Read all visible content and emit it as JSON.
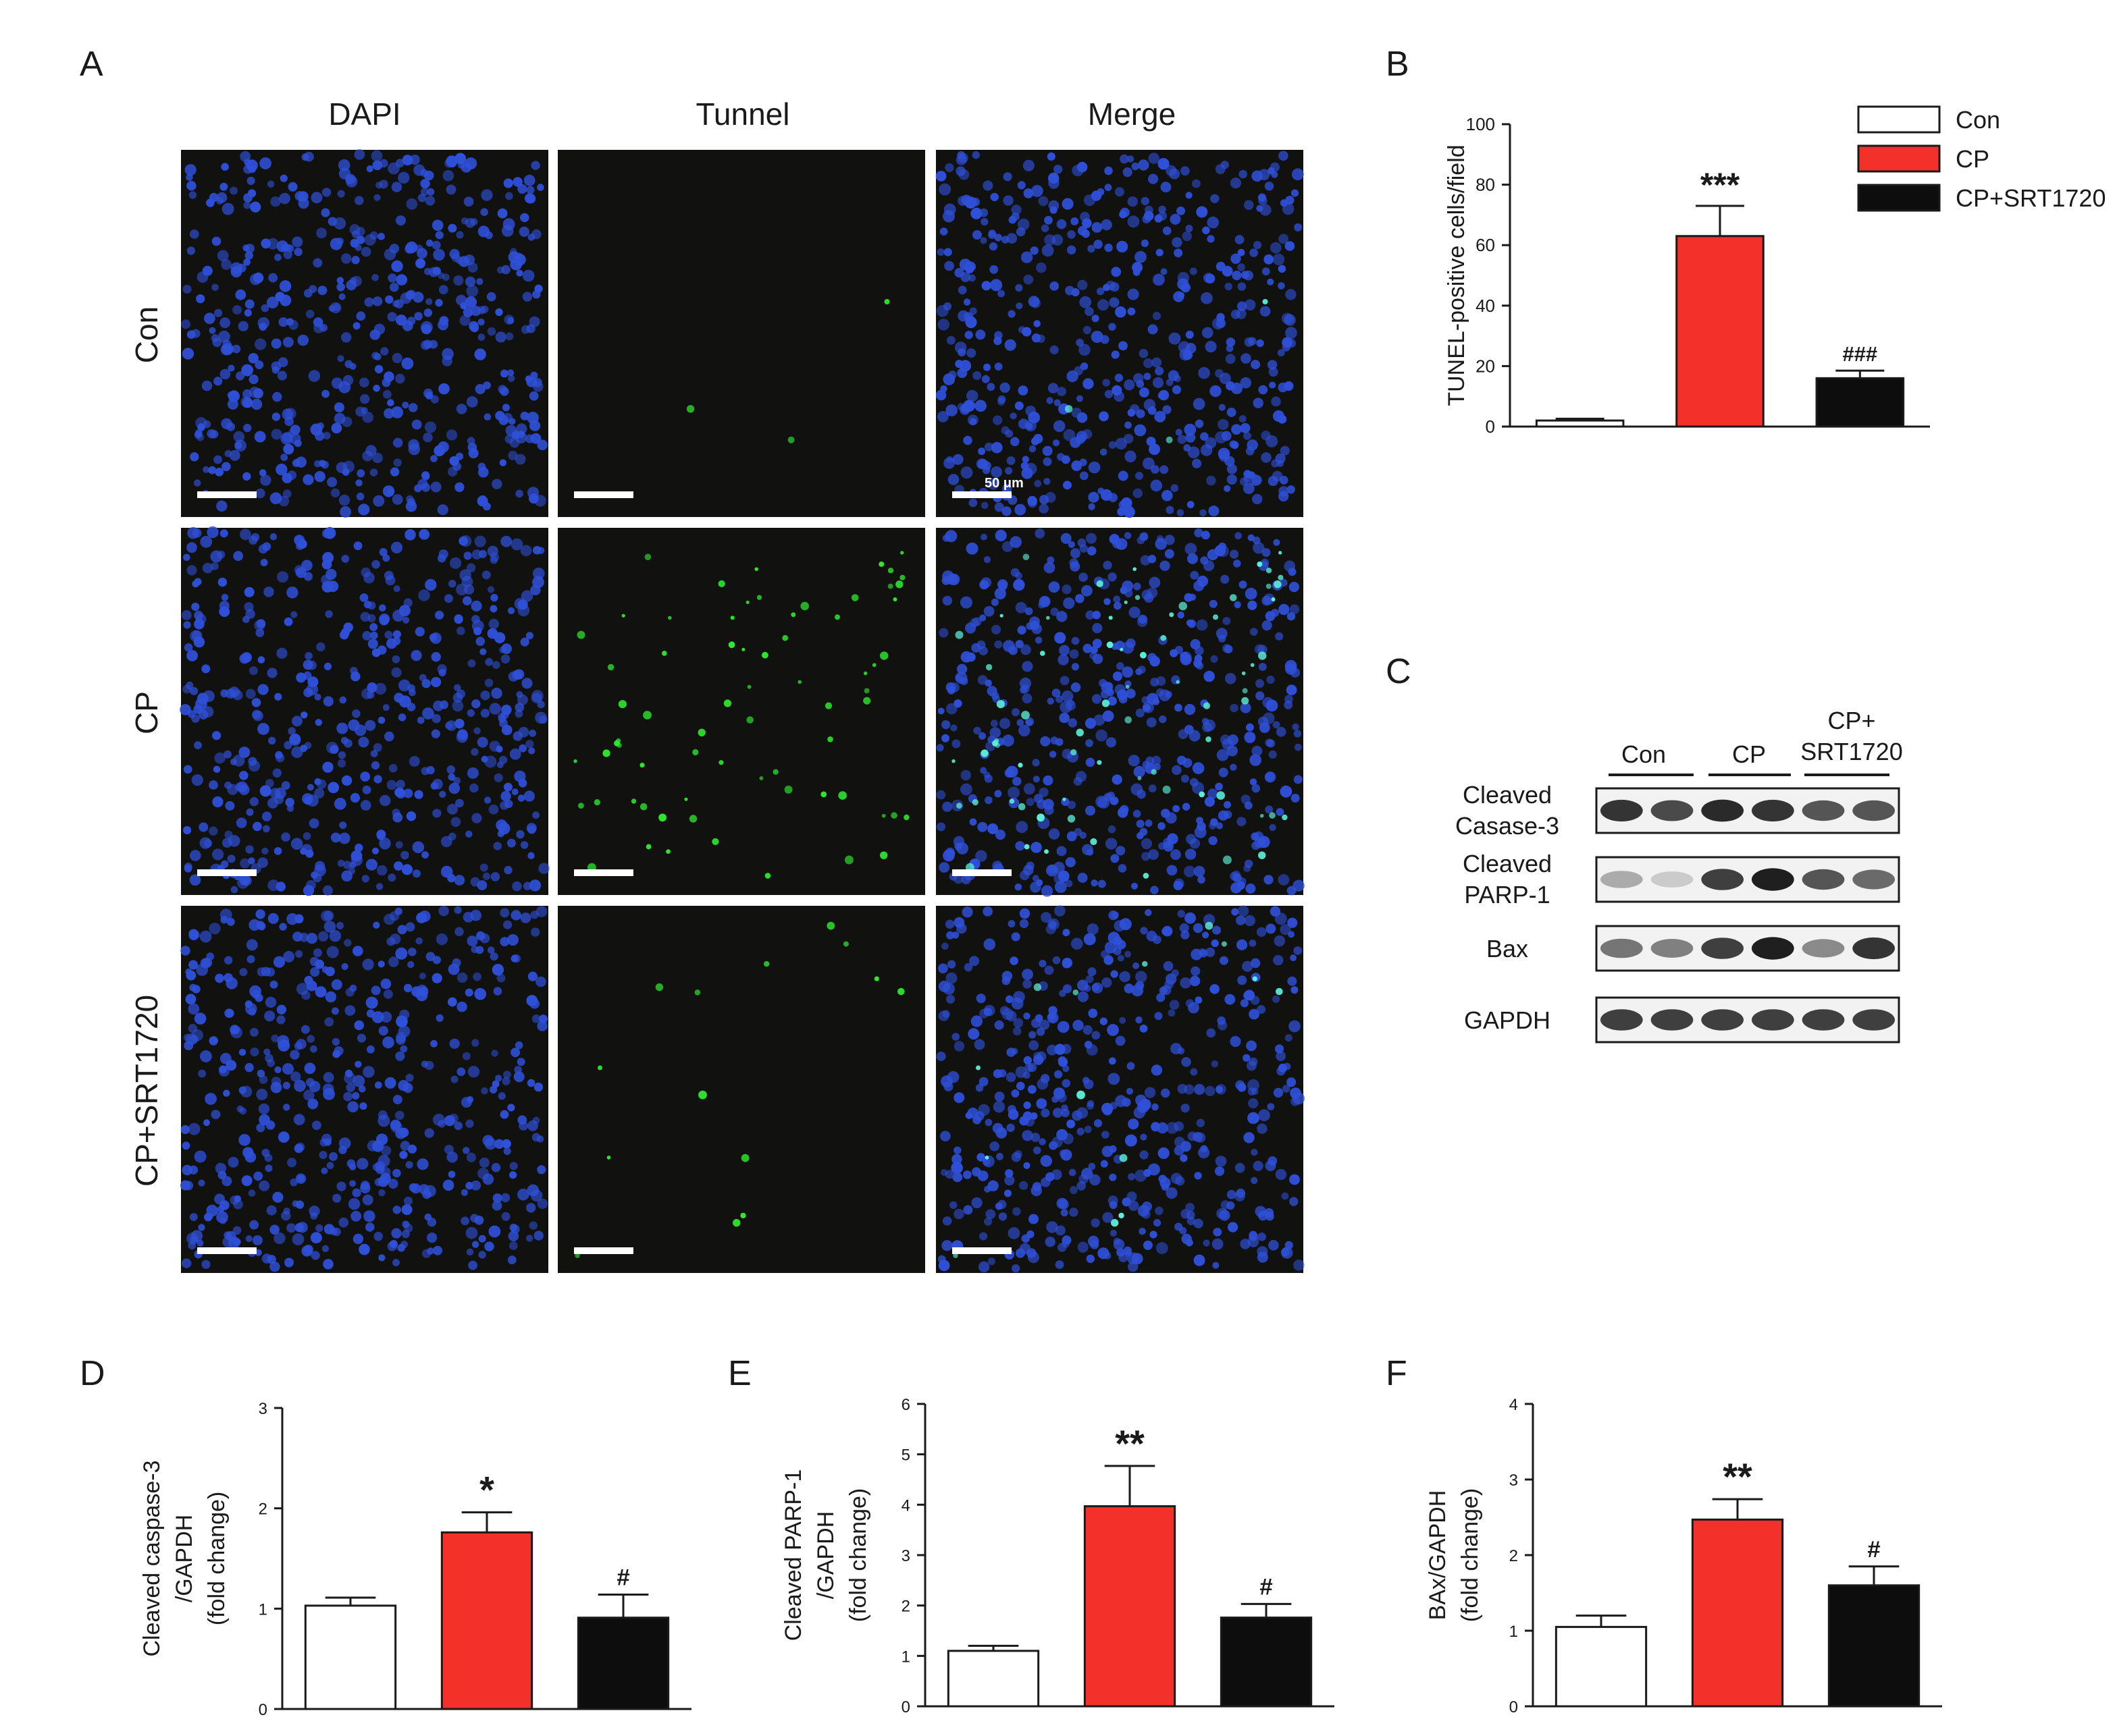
{
  "panel_letters": {
    "A": "A",
    "B": "B",
    "C": "C",
    "D": "D",
    "E": "E",
    "F": "F"
  },
  "micrographs": {
    "columns": [
      "DAPI",
      "Tunnel",
      "Merge"
    ],
    "rows": [
      "Con",
      "CP",
      "CP+SRT1720"
    ],
    "scale_label": "50 μm",
    "colors": {
      "background": "#111210",
      "nuclei": "#2f50d8",
      "tunel": "#2ee82e",
      "scale_bar": "#ffffff"
    }
  },
  "western_blot": {
    "groups": [
      "Con",
      "CP",
      "CP+\nSRT1720"
    ],
    "bands": [
      "Cleaved\nCasase-3",
      "Cleaved\nPARP-1",
      "Bax",
      "GAPDH"
    ],
    "band_intensity": [
      [
        0.85,
        0.75,
        0.9,
        0.85,
        0.7,
        0.7
      ],
      [
        0.3,
        0.15,
        0.8,
        0.95,
        0.7,
        0.6
      ],
      [
        0.55,
        0.5,
        0.8,
        0.95,
        0.45,
        0.85
      ],
      [
        0.8,
        0.8,
        0.8,
        0.8,
        0.8,
        0.8
      ]
    ]
  },
  "chart_data": [
    {
      "panel": "B",
      "type": "bar",
      "categories": [
        "Con",
        "CP",
        "CP+SRT1720"
      ],
      "values": [
        2,
        63,
        16
      ],
      "errors": [
        0.6,
        10,
        2.5
      ],
      "annotations": [
        "",
        "***",
        "###"
      ],
      "ylabel": "TUNEL-positive cells/field",
      "ylim": [
        0,
        100
      ],
      "yticks": [
        0,
        20,
        40,
        60,
        80,
        100
      ],
      "legend": [
        "Con",
        "CP",
        "CP+SRT1720"
      ],
      "legend_position": "top-right",
      "colors": [
        "#ffffff",
        "#f4302a",
        "#0d0d0d"
      ]
    },
    {
      "panel": "D",
      "type": "bar",
      "categories": [
        "Con",
        "CP",
        "CP+SRT1720"
      ],
      "values": [
        1.03,
        1.76,
        0.91
      ],
      "errors": [
        0.08,
        0.2,
        0.23
      ],
      "annotations": [
        "",
        "*",
        "#"
      ],
      "ylabel": [
        "Cleaved caspase-3",
        "/GAPDH",
        "(fold change)"
      ],
      "ylim": [
        0,
        3
      ],
      "yticks": [
        0,
        1,
        2,
        3
      ],
      "colors": [
        "#ffffff",
        "#f4302a",
        "#0d0d0d"
      ]
    },
    {
      "panel": "E",
      "type": "bar",
      "categories": [
        "Con",
        "CP",
        "CP+SRT1720"
      ],
      "values": [
        1.1,
        3.97,
        1.76
      ],
      "errors": [
        0.1,
        0.8,
        0.27
      ],
      "annotations": [
        "",
        "**",
        "#"
      ],
      "ylabel": [
        "Cleaved PARP-1",
        "/GAPDH",
        "(fold change)"
      ],
      "ylim": [
        0,
        6
      ],
      "yticks": [
        0,
        1,
        2,
        3,
        4,
        5,
        6
      ],
      "colors": [
        "#ffffff",
        "#f4302a",
        "#0d0d0d"
      ]
    },
    {
      "panel": "F",
      "type": "bar",
      "categories": [
        "Con",
        "CP",
        "CP+SRT1720"
      ],
      "values": [
        1.05,
        2.47,
        1.6
      ],
      "errors": [
        0.15,
        0.27,
        0.25
      ],
      "annotations": [
        "",
        "**",
        "#"
      ],
      "ylabel": [
        "BAx/GAPDH",
        "(fold change)"
      ],
      "ylim": [
        0,
        4
      ],
      "yticks": [
        0,
        1,
        2,
        3,
        4
      ],
      "colors": [
        "#ffffff",
        "#f4302a",
        "#0d0d0d"
      ]
    }
  ]
}
